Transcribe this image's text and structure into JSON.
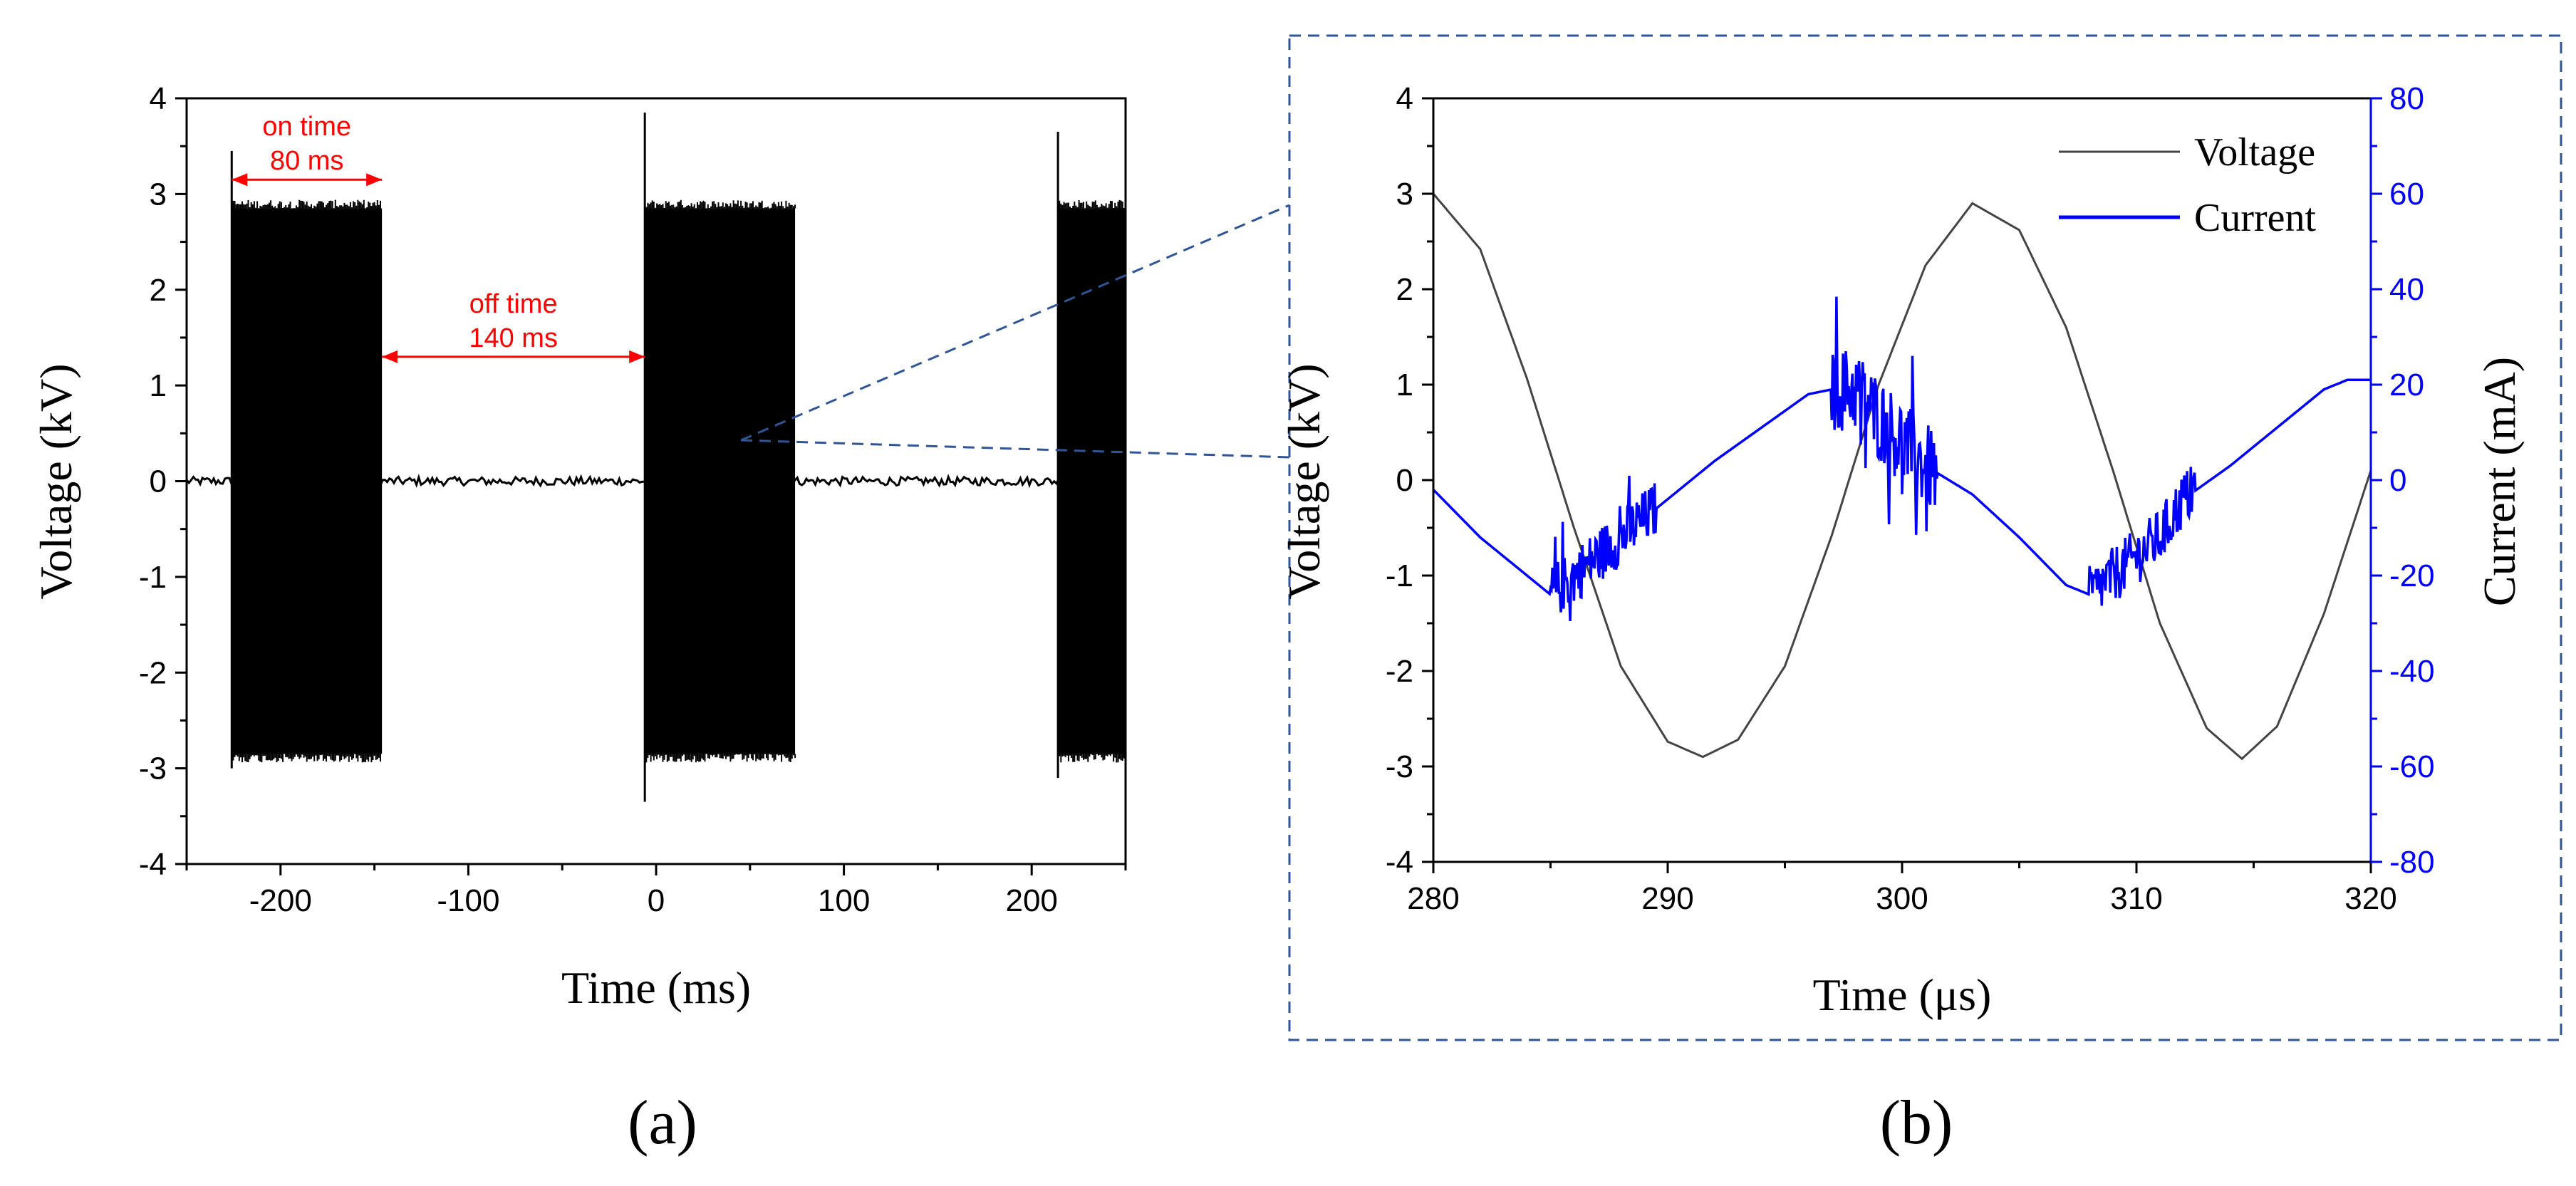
{
  "chart_data": [
    {
      "id": "a",
      "type": "line",
      "panel_label": "(a)",
      "xlabel": "Time (ms)",
      "ylabel": "Voltage (kV)",
      "xlim": [
        -250,
        250
      ],
      "ylim": [
        -4,
        4
      ],
      "xticks": [
        -200,
        -100,
        0,
        100,
        200
      ],
      "yticks": [
        -4,
        -3,
        -2,
        -1,
        0,
        1,
        2,
        3,
        4
      ],
      "grid": false,
      "burst_amplitude_kV": 2.85,
      "bursts": [
        {
          "start": -226,
          "end": -146
        },
        {
          "start": -6,
          "end": 74
        },
        {
          "start": 214,
          "end": 250
        }
      ],
      "spikes": [
        {
          "t": -226,
          "vmin": -3.0,
          "vmax": 3.45
        },
        {
          "t": -6,
          "vmin": -3.35,
          "vmax": 3.85
        },
        {
          "t": 214,
          "vmin": -3.1,
          "vmax": 3.65
        }
      ],
      "annotations": [
        {
          "lines": [
            "on time",
            "80 ms"
          ],
          "x_from": -226,
          "x_to": -146,
          "y": 3.15
        },
        {
          "lines": [
            "off time",
            "140 ms"
          ],
          "x_from": -146,
          "x_to": -6,
          "y": 1.3
        }
      ]
    },
    {
      "id": "b",
      "type": "line",
      "panel_label": "(b)",
      "xlabel": "Time (μs)",
      "ylabel": "Voltage (kV)",
      "ylabel_right": "Current (mA)",
      "xlim": [
        280,
        320
      ],
      "ylim": [
        -4,
        4
      ],
      "ylim_right": [
        -80,
        80
      ],
      "xticks": [
        280,
        290,
        300,
        310,
        320
      ],
      "yticks": [
        -4,
        -3,
        -2,
        -1,
        0,
        1,
        2,
        3,
        4
      ],
      "yticks_right": [
        -80,
        -60,
        -40,
        -20,
        0,
        20,
        40,
        60,
        80
      ],
      "grid": false,
      "legend_position": "top-right",
      "series": [
        {
          "name": "Voltage",
          "color": "#444444",
          "axis": "left",
          "x": [
            280,
            282,
            284,
            286,
            288,
            290,
            291.5,
            293,
            295,
            297,
            299,
            301,
            303,
            305,
            307,
            309,
            311,
            313,
            314.5,
            316,
            318,
            320
          ],
          "y": [
            3.0,
            2.42,
            1.06,
            -0.5,
            -1.95,
            -2.74,
            -2.9,
            -2.72,
            -1.95,
            -0.58,
            1.0,
            2.25,
            2.9,
            2.62,
            1.6,
            0.1,
            -1.5,
            -2.6,
            -2.92,
            -2.58,
            -1.4,
            0.1
          ]
        },
        {
          "name": "Current",
          "color": "#0000ff",
          "axis": "right",
          "x": [
            280,
            282,
            284,
            285,
            286,
            287,
            288,
            290,
            292,
            294,
            296,
            297,
            298,
            299,
            300,
            301,
            302,
            303,
            305,
            307,
            308,
            309,
            310,
            311,
            312,
            314,
            316,
            318,
            319,
            320
          ],
          "y": [
            -2,
            -12,
            -20,
            -24,
            -20,
            -16,
            -12,
            -4,
            4,
            11,
            18,
            19,
            19,
            13,
            8,
            3,
            0,
            -3,
            -12,
            -22,
            -24,
            -20,
            -16,
            -12,
            -4,
            3,
            11,
            19,
            21,
            21
          ],
          "noise_regions": [
            {
              "x_from": 285,
              "x_to": 289.5,
              "amplitude_mA": 12
            },
            {
              "x_from": 297,
              "x_to": 301.5,
              "amplitude_mA": 18
            },
            {
              "x_from": 308,
              "x_to": 312.5,
              "amplitude_mA": 12
            }
          ]
        }
      ]
    }
  ]
}
